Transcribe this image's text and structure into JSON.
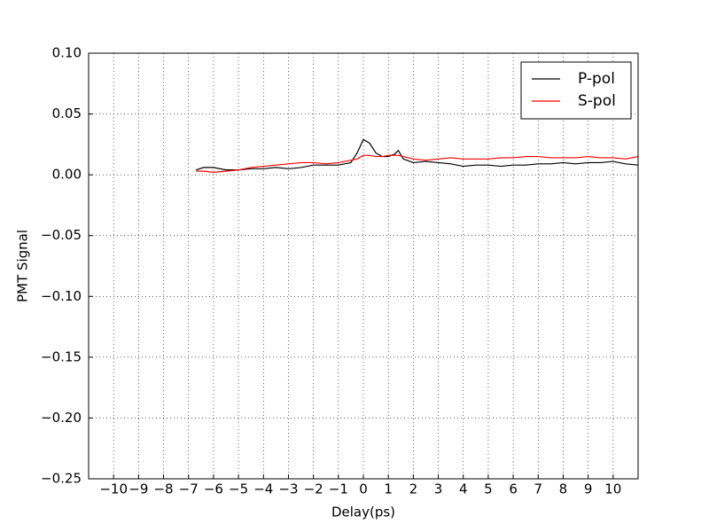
{
  "chart_data": {
    "type": "line",
    "x_label": "Delay(ps)",
    "y_label": "PMT Signal",
    "x": [
      -6.7,
      -6.4,
      -6.0,
      -5.5,
      -5.0,
      -4.5,
      -4.0,
      -3.5,
      -3.0,
      -2.5,
      -2.0,
      -1.5,
      -1.0,
      -0.5,
      -0.25,
      0,
      0.25,
      0.5,
      0.75,
      1.0,
      1.25,
      1.4,
      1.6,
      2.0,
      2.5,
      3.0,
      3.5,
      4.0,
      4.5,
      5.0,
      5.5,
      6.0,
      6.5,
      7.0,
      7.5,
      8.0,
      8.5,
      9.0,
      9.5,
      10.0,
      10.5,
      11.0
    ],
    "series": [
      {
        "name": "P-pol",
        "color": "#000000",
        "values": [
          0.004,
          0.006,
          0.006,
          0.004,
          0.004,
          0.005,
          0.005,
          0.006,
          0.005,
          0.006,
          0.008,
          0.008,
          0.008,
          0.01,
          0.018,
          0.029,
          0.026,
          0.018,
          0.015,
          0.015,
          0.017,
          0.02,
          0.013,
          0.01,
          0.011,
          0.01,
          0.009,
          0.007,
          0.008,
          0.008,
          0.007,
          0.008,
          0.008,
          0.009,
          0.009,
          0.01,
          0.009,
          0.01,
          0.01,
          0.011,
          0.009,
          0.008
        ]
      },
      {
        "name": "S-pol",
        "color": "#ff0000",
        "values": [
          0.003,
          0.003,
          0.002,
          0.003,
          0.004,
          0.006,
          0.007,
          0.008,
          0.009,
          0.01,
          0.01,
          0.009,
          0.01,
          0.012,
          0.013,
          0.016,
          0.016,
          0.015,
          0.015,
          0.016,
          0.016,
          0.016,
          0.015,
          0.013,
          0.012,
          0.013,
          0.014,
          0.013,
          0.013,
          0.013,
          0.014,
          0.014,
          0.015,
          0.015,
          0.014,
          0.014,
          0.014,
          0.015,
          0.014,
          0.014,
          0.013,
          0.015
        ]
      }
    ],
    "xlim": [
      -11,
      11
    ],
    "xticks": [
      {
        "value": -10,
        "label": "−10"
      },
      {
        "value": -9,
        "label": "−9"
      },
      {
        "value": -8,
        "label": "−8"
      },
      {
        "value": -7,
        "label": "−7"
      },
      {
        "value": -6,
        "label": "−6"
      },
      {
        "value": -5,
        "label": "−5"
      },
      {
        "value": -4,
        "label": "−4"
      },
      {
        "value": -3,
        "label": "−3"
      },
      {
        "value": -2,
        "label": "−2"
      },
      {
        "value": -1,
        "label": "−1"
      },
      0,
      1,
      2,
      3,
      4,
      5,
      6,
      7,
      8,
      9,
      10
    ],
    "ylim": [
      -0.25,
      0.1
    ],
    "yticks": [
      {
        "value": -0.25,
        "label": "−0.25"
      },
      {
        "value": -0.2,
        "label": "−0.20"
      },
      {
        "value": -0.15,
        "label": "−0.15"
      },
      {
        "value": -0.1,
        "label": "−0.10"
      },
      {
        "value": -0.05,
        "label": "−0.05"
      },
      {
        "value": 0,
        "label": "0.00"
      },
      {
        "value": 0.05,
        "label": "0.05"
      },
      {
        "value": 0.1,
        "label": "0.10"
      }
    ],
    "grid": true,
    "legend": "upper right"
  }
}
